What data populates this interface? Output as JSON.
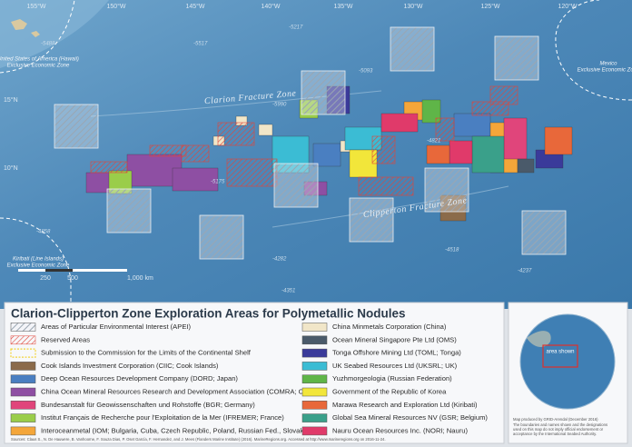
{
  "map": {
    "longitudes": [
      "155°W",
      "150°W",
      "145°W",
      "140°W",
      "135°W",
      "130°W",
      "125°W",
      "120°W"
    ],
    "latitudes": [
      "15°N",
      "10°N"
    ],
    "depths": [
      "-5217",
      "-5093",
      "-5488",
      "-5517",
      "-5990",
      "-4821",
      "-5175",
      "-4858",
      "-4282",
      "-4518",
      "-4237",
      "-4351"
    ],
    "features": [
      "Clarion Fracture Zone",
      "Clipperton Fracture Zone"
    ],
    "zones": [
      [
        "United States of America (Hawaii)",
        "Exclusive Economic Zone"
      ],
      [
        "Mexico",
        "Exclusive Economic Zone"
      ],
      [
        "Kiribati (Line Islands)",
        "Exclusive Economic Zone"
      ]
    ],
    "scale": [
      "250",
      "500",
      "1,000 km"
    ]
  },
  "legend": {
    "title": "Clarion-Clipperton Zone Exploration Areas for Polymetallic Nodules",
    "items": [
      {
        "label": "Areas of Particular Environmental Interest (APEI)",
        "color": "#9aa6b2"
      },
      {
        "label": "Reserved Areas",
        "color": "#e0453a"
      },
      {
        "label": "Submission to the Commission for the Limits of the Continental Shelf",
        "color": "#f2d43a"
      },
      {
        "label": "Cook Islands Investment Corporation (CIIC; Cook Islands)",
        "color": "#8b6b4a"
      },
      {
        "label": "Deep Ocean Resources Development Company (DORD; Japan)",
        "color": "#4a7fc1"
      },
      {
        "label": "China Ocean Mineral Resources Research and Development Association (COMRA; China)",
        "color": "#8e4fa3"
      },
      {
        "label": "Bundesanstalt für Geowissenschaften und Rohstoffe (BGR; Germany)",
        "color": "#e0457b"
      },
      {
        "label": "Institut Français de Recherche pour l'Exploitation de la Mer (IFREMER; France)",
        "color": "#9acd4a"
      },
      {
        "label": "Interoceanmetal (IOM; Bulgaria, Cuba, Czech Republic, Poland, Russian Fed., Slovakia)",
        "color": "#f4a63a"
      },
      {
        "label": "China Minmetals Corporation (China)",
        "color": "#f1e6c8"
      },
      {
        "label": "Ocean Mineral Singapore Pte Ltd (OMS)",
        "color": "#4a5a6a"
      },
      {
        "label": "Tonga Offshore Mining Ltd (TOML; Tonga)",
        "color": "#3a3a9a"
      },
      {
        "label": "UK Seabed Resources Ltd (UKSRL; UK)",
        "color": "#3bbcd4"
      },
      {
        "label": "Yuzhmorgeologia (Russian Federation)",
        "color": "#5fb548"
      },
      {
        "label": "Government of the Republic of Korea",
        "color": "#f2e63a"
      },
      {
        "label": "Marawa Research and Exploration Ltd (Kiribati)",
        "color": "#e8683a"
      },
      {
        "label": "Global Sea Mineral Resources NV (GSR; Belgium)",
        "color": "#3aa08a"
      },
      {
        "label": "Nauru Ocean Resources Inc. (NORI; Nauru)",
        "color": "#e03a6a"
      }
    ]
  },
  "inset": {
    "label": "area shown",
    "credit": "Map produced by GRID-Arendal (December 2016)",
    "disclaimer": [
      "The boundaries and names shown and the designations",
      "used on this map do not imply official endorsement or",
      "acceptance by the International Seabed Authority."
    ]
  },
  "source": "Sources: Claus S., N. De Hauwere, B. Vanhoorne, F. Souza Dias, P. Oset García, F. Hernandez, and J. Mees (Flanders Marine Institute) (2016). MarineRegions.org. Accessed at http://www.marineregions.org on 2016-11-24."
}
